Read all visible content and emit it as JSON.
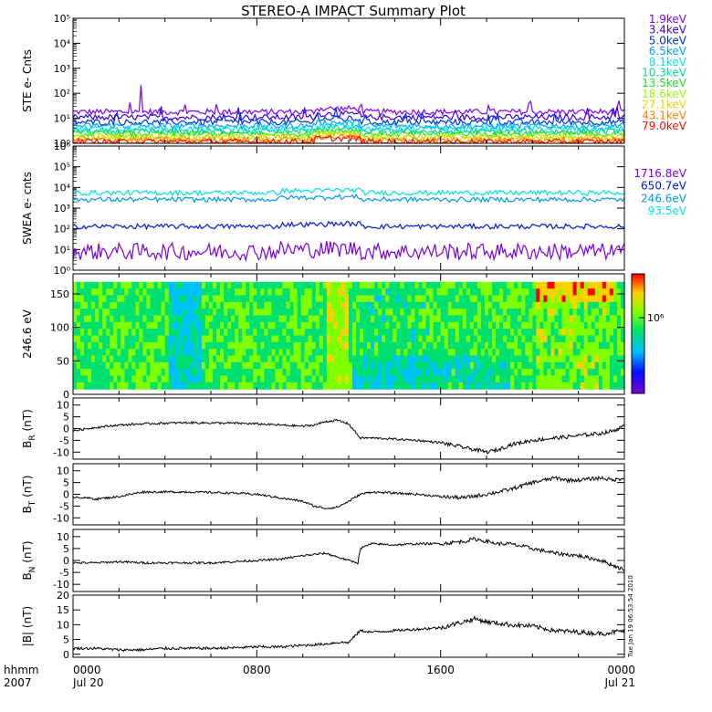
{
  "title": "STEREO-A IMPACT Summary Plot",
  "x_axis": {
    "row1_label": "hhmm",
    "row2_label": "2007",
    "ticks": [
      {
        "hour": 0,
        "time": "0000",
        "date": "Jul 20"
      },
      {
        "hour": 8,
        "time": "0800",
        "date": ""
      },
      {
        "hour": 16,
        "time": "1600",
        "date": ""
      },
      {
        "hour": 24,
        "time": "0000",
        "date": "Jul 21"
      }
    ]
  },
  "timestamp": "Tue Jan 19 06:53:54 2010",
  "colorbar": {
    "label": "10⁶",
    "colors": [
      "#7a00d8",
      "#0010ff",
      "#00c0ff",
      "#00e070",
      "#80ff00",
      "#ffd000",
      "#ff0000"
    ]
  },
  "chart_data": [
    {
      "type": "line",
      "name": "ste",
      "ylabel": "STE e- Cnts",
      "yscale": "log",
      "ylim": [
        1,
        100000
      ],
      "yticks": [
        "10⁰",
        "10¹",
        "10²",
        "10³",
        "10⁴",
        "10⁵"
      ],
      "x_range_hours": [
        0,
        24
      ],
      "series": [
        {
          "name": "1.9keV",
          "color": "#7f00ff",
          "level": 18
        },
        {
          "name": "3.4keV",
          "color": "#3a00e0",
          "level": 11
        },
        {
          "name": "5.0keV",
          "color": "#0030e8",
          "level": 7
        },
        {
          "name": "6.5keV",
          "color": "#00a0ff",
          "level": 5
        },
        {
          "name": "8.1keV",
          "color": "#00e0ff",
          "level": 3.8
        },
        {
          "name": "10.3keV",
          "color": "#00d8a0",
          "level": 3
        },
        {
          "name": "13.5keV",
          "color": "#20e020",
          "level": 2.4
        },
        {
          "name": "18.6keV",
          "color": "#a0f000",
          "level": 1.9
        },
        {
          "name": "27.1keV",
          "color": "#f0d000",
          "level": 1.6
        },
        {
          "name": "43.1keV",
          "color": "#ff8000",
          "level": 1.35
        },
        {
          "name": "79.0keV",
          "color": "#ff1000",
          "level": 1.15
        }
      ]
    },
    {
      "type": "line",
      "name": "swea",
      "ylabel": "SWEA e- cnts",
      "yscale": "log",
      "ylim": [
        1,
        1000000
      ],
      "yticks": [
        "10⁰",
        "10¹",
        "10²",
        "10³",
        "10⁴",
        "10⁵",
        "10⁶"
      ],
      "x_range_hours": [
        0,
        24
      ],
      "series": [
        {
          "name": "1716.8eV",
          "color": "#7a00e8",
          "level": 8
        },
        {
          "name": "650.7eV",
          "color": "#0018e0",
          "level": 130
        },
        {
          "name": "246.6eV",
          "color": "#0098f0",
          "level": 2600
        },
        {
          "name": "93.5eV",
          "color": "#00e0e0",
          "level": 5500
        }
      ]
    },
    {
      "type": "heatmap",
      "name": "pad",
      "ylabel": "246.6 eV",
      "ylim": [
        0,
        180
      ],
      "yticks": [
        "0",
        "50",
        "100",
        "150"
      ],
      "x_range_hours": [
        0,
        24
      ]
    },
    {
      "type": "line",
      "name": "br",
      "ylabel": "B",
      "ylabel_sub": "R",
      "ylabel_unit": " (nT)",
      "ylim": [
        -13,
        13
      ],
      "yticks": [
        "-10",
        "-5",
        "0",
        "5",
        "10"
      ],
      "ytick_values": [
        -10,
        -5,
        0,
        5,
        10
      ],
      "x": [
        0,
        1,
        2,
        3,
        4,
        5,
        6,
        7,
        8,
        9,
        10,
        10.5,
        11,
        11.5,
        12,
        12.5,
        13,
        14,
        15,
        16,
        17,
        17.5,
        18,
        18.5,
        19,
        19.5,
        20,
        21,
        22,
        23,
        23.5,
        24
      ],
      "values": [
        -1,
        0.5,
        1.5,
        2,
        2.3,
        2.5,
        2.4,
        2.3,
        2,
        1.5,
        1,
        1.5,
        3,
        3.5,
        2,
        -4,
        -4,
        -4.5,
        -5,
        -6,
        -8,
        -9,
        -10,
        -9,
        -7,
        -6,
        -5,
        -4,
        -3,
        -2,
        -1,
        1
      ]
    },
    {
      "type": "line",
      "name": "bt",
      "ylabel": "B",
      "ylabel_sub": "T",
      "ylabel_unit": " (nT)",
      "ylim": [
        -13,
        13
      ],
      "yticks": [
        "-10",
        "-5",
        "0",
        "5",
        "10"
      ],
      "ytick_values": [
        -10,
        -5,
        0,
        5,
        10
      ],
      "x": [
        0,
        1,
        2,
        3,
        4,
        5,
        6,
        7,
        8,
        9,
        10,
        10.5,
        11,
        11.5,
        12,
        12.5,
        13,
        14,
        15,
        16,
        17,
        18,
        19,
        20,
        20.5,
        21,
        21.5,
        22,
        23,
        23.5,
        24
      ],
      "values": [
        -1,
        -2,
        -1,
        1,
        1,
        1,
        0.8,
        0.5,
        0,
        -1.5,
        -3,
        -5,
        -6,
        -5.5,
        -3,
        0,
        1,
        0.5,
        0,
        -1,
        -1.5,
        0,
        2,
        5,
        6,
        7,
        6,
        6,
        7,
        6,
        7
      ]
    },
    {
      "type": "line",
      "name": "bn",
      "ylabel": "B",
      "ylabel_sub": "N",
      "ylabel_unit": " (nT)",
      "ylim": [
        -13,
        13
      ],
      "yticks": [
        "-10",
        "-5",
        "0",
        "5",
        "10"
      ],
      "ytick_values": [
        -10,
        -5,
        0,
        5,
        10
      ],
      "x": [
        0,
        1,
        2,
        3,
        4,
        5,
        6,
        7,
        8,
        9,
        10,
        11,
        12,
        12.4,
        12.5,
        13,
        14,
        15,
        16,
        17,
        17.5,
        18,
        18.5,
        19,
        20,
        21,
        22,
        23,
        23.5,
        24
      ],
      "values": [
        -1,
        -1,
        -0.5,
        -1,
        -1,
        -1,
        -1,
        -0.5,
        0,
        0.5,
        2,
        3,
        0,
        -1,
        5,
        7,
        6.5,
        7,
        7,
        8,
        9,
        8,
        7,
        7,
        5,
        3,
        2,
        0,
        -2,
        -4
      ]
    },
    {
      "type": "line",
      "name": "bmag",
      "ylabel": "|B|",
      "ylabel_unit": " (nT)",
      "ylim": [
        -1,
        20
      ],
      "yticks": [
        "0",
        "5",
        "10",
        "15",
        "20"
      ],
      "ytick_values": [
        0,
        5,
        10,
        15,
        20
      ],
      "x": [
        0,
        1,
        2,
        3,
        4,
        5,
        6,
        7,
        8,
        9,
        10,
        11,
        11.5,
        12,
        12.5,
        13,
        14,
        15,
        16,
        17,
        17.5,
        18,
        19,
        20,
        21,
        22,
        23,
        24
      ],
      "values": [
        2,
        2,
        1.5,
        1.5,
        2,
        2,
        2,
        2.2,
        2.5,
        2.5,
        3,
        3.5,
        4,
        4,
        8,
        7.5,
        8,
        8.5,
        9,
        11,
        12,
        11,
        10,
        9.5,
        8,
        7.5,
        7,
        8
      ]
    }
  ]
}
